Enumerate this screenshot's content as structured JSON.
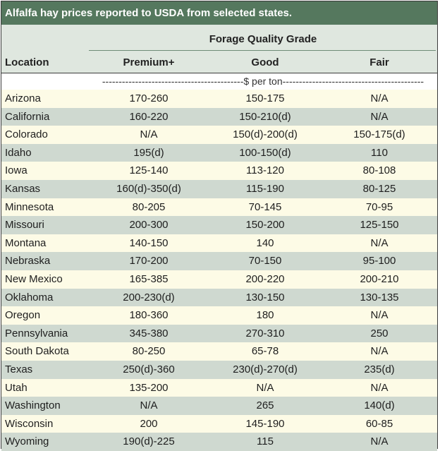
{
  "title": "Alfalfa hay prices reported to USDA from selected states.",
  "header": {
    "group": "Forage Quality Grade",
    "location": "Location",
    "columns": [
      "Premium+",
      "Good",
      "Fair"
    ],
    "unit_line": "-------------------------------------------$ per ton-------------------------------------------"
  },
  "colors": {
    "title_bg": "#55785e",
    "header_bg": "#dfe7df",
    "row_light": "#fdfbe6",
    "row_dark": "#cfd9d0"
  },
  "rows": [
    {
      "location": "Arizona",
      "premium": "170-260",
      "good": "150-175",
      "fair": "N/A"
    },
    {
      "location": "California",
      "premium": "160-220",
      "good": "150-210(d)",
      "fair": "N/A"
    },
    {
      "location": "Colorado",
      "premium": "N/A",
      "good": "150(d)-200(d)",
      "fair": "150-175(d)"
    },
    {
      "location": "Idaho",
      "premium": "195(d)",
      "good": "100-150(d)",
      "fair": "110"
    },
    {
      "location": "Iowa",
      "premium": "125-140",
      "good": "113-120",
      "fair": "80-108"
    },
    {
      "location": "Kansas",
      "premium": "160(d)-350(d)",
      "good": "115-190",
      "fair": "80-125"
    },
    {
      "location": "Minnesota",
      "premium": "80-205",
      "good": "70-145",
      "fair": "70-95"
    },
    {
      "location": "Missouri",
      "premium": "200-300",
      "good": "150-200",
      "fair": "125-150"
    },
    {
      "location": "Montana",
      "premium": "140-150",
      "good": "140",
      "fair": "N/A"
    },
    {
      "location": "Nebraska",
      "premium": "170-200",
      "good": "70-150",
      "fair": "95-100"
    },
    {
      "location": "New Mexico",
      "premium": "165-385",
      "good": "200-220",
      "fair": "200-210"
    },
    {
      "location": "Oklahoma",
      "premium": "200-230(d)",
      "good": "130-150",
      "fair": "130-135"
    },
    {
      "location": "Oregon",
      "premium": "180-360",
      "good": "180",
      "fair": "N/A"
    },
    {
      "location": "Pennsylvania",
      "premium": "345-380",
      "good": "270-310",
      "fair": "250"
    },
    {
      "location": "South Dakota",
      "premium": "80-250",
      "good": "65-78",
      "fair": "N/A"
    },
    {
      "location": "Texas",
      "premium": "250(d)-360",
      "good": "230(d)-270(d)",
      "fair": "235(d)"
    },
    {
      "location": "Utah",
      "premium": "135-200",
      "good": "N/A",
      "fair": "N/A"
    },
    {
      "location": "Washington",
      "premium": "N/A",
      "good": "265",
      "fair": "140(d)"
    },
    {
      "location": "Wisconsin",
      "premium": "200",
      "good": "145-190",
      "fair": "60-85"
    },
    {
      "location": "Wyoming",
      "premium": "190(d)-225",
      "good": "115",
      "fair": "N/A"
    }
  ]
}
